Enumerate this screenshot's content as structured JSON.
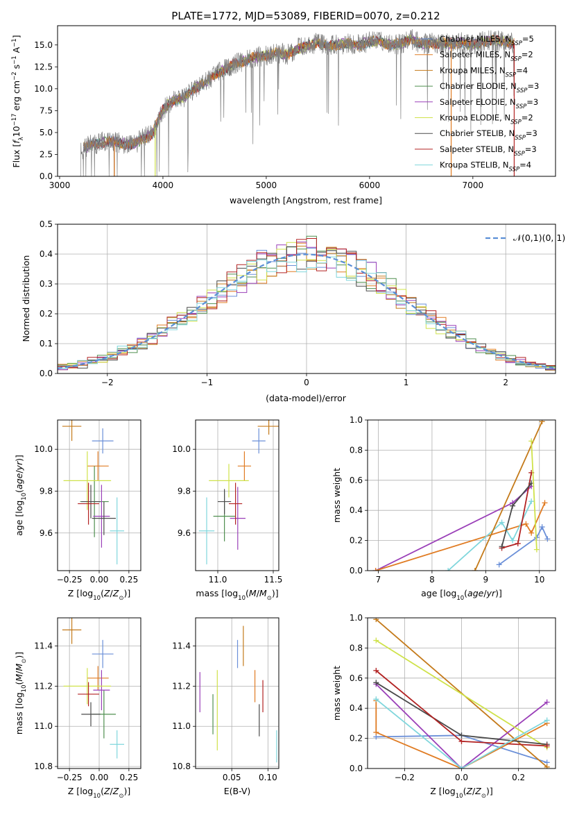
{
  "title": "PLATE=1772, MJD=53089, FIBERID=0070, z=0.212",
  "models": [
    {
      "name": "Chabrier MILES",
      "nssp": "5",
      "color": "#6a8fd8"
    },
    {
      "name": "Salpeter MILES",
      "nssp": "2",
      "color": "#e07b22"
    },
    {
      "name": "Kroupa MILES",
      "nssp": "4",
      "color": "#c47a1a"
    },
    {
      "name": "Chabrier ELODIE",
      "nssp": "3",
      "color": "#4f8f4f"
    },
    {
      "name": "Salpeter ELODIE",
      "nssp": "3",
      "color": "#9a3fb8"
    },
    {
      "name": "Kroupa ELODIE",
      "nssp": "2",
      "color": "#cfe24a"
    },
    {
      "name": "Chabrier STELIB",
      "nssp": "3",
      "color": "#4a4a4a"
    },
    {
      "name": "Salpeter STELIB",
      "nssp": "3",
      "color": "#b22222"
    },
    {
      "name": "Kroupa STELIB",
      "nssp": "4",
      "color": "#7fd6dc"
    }
  ],
  "chart_data": [
    {
      "id": "spectrum",
      "type": "line",
      "xlabel": "wavelength [Angstrom, rest frame]",
      "ylabel": "Flux [f_λ 10^-17 erg cm^-2 s^-1 A^-1]",
      "xlim": [
        2980,
        7800
      ],
      "ylim": [
        0,
        17.2
      ],
      "xticks": [
        3000,
        4000,
        5000,
        6000,
        7000
      ],
      "yticks": [
        "0.0",
        "2.5",
        "5.0",
        "7.5",
        "10.0",
        "12.5",
        "15.0"
      ],
      "data_series": {
        "name": "data",
        "color": "#808080",
        "x": [
          3200,
          3300,
          3400,
          3500,
          3600,
          3700,
          3800,
          3900,
          4000,
          4100,
          4200,
          4300,
          4400,
          4500,
          4600,
          4700,
          4800,
          4900,
          5000,
          5100,
          5200,
          5300,
          5400,
          5500,
          5600,
          5700,
          5800,
          5900,
          6000,
          6100,
          6200,
          6300,
          6400,
          6500,
          6600,
          6700,
          6800,
          6900,
          7000,
          7100,
          7200,
          7300,
          7400
        ],
        "y": [
          3.0,
          3.6,
          3.9,
          4.0,
          3.8,
          3.5,
          4.3,
          4.9,
          7.6,
          8.7,
          8.9,
          10.0,
          10.6,
          11.6,
          12.2,
          12.9,
          13.2,
          13.6,
          13.8,
          14.1,
          13.9,
          14.6,
          14.9,
          15.3,
          14.8,
          15.1,
          15.1,
          15.0,
          15.4,
          15.4,
          15.0,
          15.1,
          15.7,
          15.1,
          15.2,
          15.2,
          15.1,
          15.3,
          15.0,
          15.4,
          15.5,
          15.4,
          15.2
        ]
      },
      "legend_position": "upper right"
    },
    {
      "id": "residuals",
      "type": "histogram",
      "xlabel": "(data-model)/error",
      "ylabel": "Normed distribution",
      "xlim": [
        -2.5,
        2.5
      ],
      "ylim": [
        0,
        0.5
      ],
      "xticks": [
        -2,
        -1,
        0,
        1,
        2
      ],
      "yticks": [
        "0.0",
        "0.1",
        "0.2",
        "0.3",
        "0.4",
        "0.5"
      ],
      "reference_curve": {
        "name": "𝒩(0,1)",
        "color": "#5b8fd6",
        "style": "dashed"
      },
      "bin_width": 0.1
    },
    {
      "id": "age-vs-Z",
      "type": "errorbar",
      "xlabel": "Z [log10(Z/Z⊙)]",
      "ylabel": "age [log10(age/yr)]",
      "xlim": [
        -0.35,
        0.35
      ],
      "ylim": [
        9.42,
        10.14
      ],
      "xticks": [
        "−0.25",
        "0.00",
        "0.25"
      ],
      "yticks": [
        "9.6",
        "9.8",
        "10.0"
      ],
      "points": [
        {
          "model": 0,
          "x": 0.03,
          "y": 10.04,
          "xerr": 0.09,
          "yerr": 0.06
        },
        {
          "model": 1,
          "x": -0.01,
          "y": 9.92,
          "xerr": 0.09,
          "yerr": 0.07
        },
        {
          "model": 3,
          "x": -0.04,
          "y": 9.75,
          "xerr": 0.12,
          "yerr": 0.17
        },
        {
          "model": 4,
          "x": 0.02,
          "y": 9.68,
          "xerr": 0.07,
          "yerr": 0.15
        },
        {
          "model": 5,
          "x": -0.1,
          "y": 9.85,
          "xerr": 0.2,
          "yerr": 0.14
        },
        {
          "model": 6,
          "x": -0.07,
          "y": 9.75,
          "xerr": 0.08,
          "yerr": 0.08
        },
        {
          "model": 7,
          "x": -0.09,
          "y": 9.74,
          "xerr": 0.09,
          "yerr": 0.1
        },
        {
          "model": 8,
          "x": 0.15,
          "y": 9.61,
          "xerr": 0.06,
          "yerr": 0.16
        },
        {
          "model": 2,
          "x": -0.23,
          "y": 10.11,
          "xerr": 0.08,
          "yerr": 0.07
        },
        {
          "model": 6,
          "x": 0.04,
          "y": 9.67,
          "xerr": 0.1,
          "yerr": 0.08
        }
      ]
    },
    {
      "id": "age-vs-mass",
      "type": "errorbar",
      "xlabel": "mass [log10(M/M⊙)]",
      "ylabel": "",
      "xlim": [
        10.8,
        11.55
      ],
      "ylim": [
        9.42,
        10.14
      ],
      "xticks": [
        "11.0",
        "11.5"
      ],
      "yticks": [
        "9.6",
        "9.8",
        "10.0"
      ],
      "points": [
        {
          "model": 0,
          "x": 11.37,
          "y": 10.04,
          "xerr": 0.06,
          "yerr": 0.06
        },
        {
          "model": 1,
          "x": 11.24,
          "y": 9.92,
          "xerr": 0.06,
          "yerr": 0.07
        },
        {
          "model": 2,
          "x": 11.46,
          "y": 10.11,
          "xerr": 0.1,
          "yerr": 0.04
        },
        {
          "model": 3,
          "x": 11.06,
          "y": 9.68,
          "xerr": 0.1,
          "yerr": 0.12
        },
        {
          "model": 4,
          "x": 11.18,
          "y": 9.67,
          "xerr": 0.07,
          "yerr": 0.15
        },
        {
          "model": 5,
          "x": 11.1,
          "y": 9.85,
          "xerr": 0.18,
          "yerr": 0.08
        },
        {
          "model": 6,
          "x": 11.06,
          "y": 9.75,
          "xerr": 0.06,
          "yerr": 0.06
        },
        {
          "model": 7,
          "x": 11.16,
          "y": 9.74,
          "xerr": 0.06,
          "yerr": 0.1
        },
        {
          "model": 8,
          "x": 10.9,
          "y": 9.61,
          "xerr": 0.07,
          "yerr": 0.16
        }
      ]
    },
    {
      "id": "weight-vs-age",
      "type": "line",
      "xlabel": "age [log10(age/yr)]",
      "ylabel": "mass weight",
      "xlim": [
        6.8,
        10.3
      ],
      "ylim": [
        0,
        1
      ],
      "xticks": [
        "7",
        "8",
        "9",
        "10"
      ],
      "yticks": [
        "0.0",
        "0.2",
        "0.4",
        "0.6",
        "0.8",
        "1.0"
      ],
      "series": [
        {
          "model": 4,
          "x": [
            6.95,
            9.5,
            9.85
          ],
          "y": [
            0.0,
            0.45,
            0.56
          ]
        },
        {
          "model": 1,
          "x": [
            6.95,
            9.75,
            9.85,
            10.1
          ],
          "y": [
            0.0,
            0.31,
            0.25,
            0.45
          ]
        },
        {
          "model": 0,
          "x": [
            9.25,
            9.95,
            10.05,
            10.15
          ],
          "y": [
            0.04,
            0.22,
            0.29,
            0.21
          ]
        },
        {
          "model": 8,
          "x": [
            8.3,
            9.3,
            9.5,
            9.85
          ],
          "y": [
            0.0,
            0.32,
            0.2,
            0.46
          ]
        },
        {
          "model": 7,
          "x": [
            9.3,
            9.6,
            9.85
          ],
          "y": [
            0.15,
            0.18,
            0.65
          ]
        },
        {
          "model": 6,
          "x": [
            9.3,
            9.5,
            9.85
          ],
          "y": [
            0.16,
            0.43,
            0.58
          ]
        },
        {
          "model": 2,
          "x": [
            8.8,
            10.05
          ],
          "y": [
            0.0,
            0.99
          ]
        },
        {
          "model": 5,
          "x": [
            9.85,
            9.95
          ],
          "y": [
            0.86,
            0.14
          ]
        }
      ]
    },
    {
      "id": "mass-vs-Z",
      "type": "errorbar",
      "xlabel": "Z [log10(Z/Z⊙)]",
      "ylabel": "mass [log10(M/M⊙)]",
      "xlim": [
        -0.35,
        0.35
      ],
      "ylim": [
        10.79,
        11.54
      ],
      "xticks": [
        "−0.25",
        "0.00",
        "0.25"
      ],
      "yticks": [
        "10.8",
        "11.0",
        "11.2",
        "11.4"
      ],
      "points": [
        {
          "model": 0,
          "x": 0.03,
          "y": 11.36,
          "xerr": 0.09,
          "yerr": 0.07
        },
        {
          "model": 1,
          "x": -0.01,
          "y": 11.24,
          "xerr": 0.09,
          "yerr": 0.06
        },
        {
          "model": 2,
          "x": -0.23,
          "y": 11.48,
          "xerr": 0.08,
          "yerr": 0.07
        },
        {
          "model": 3,
          "x": 0.04,
          "y": 11.06,
          "xerr": 0.1,
          "yerr": 0.12
        },
        {
          "model": 4,
          "x": 0.02,
          "y": 11.18,
          "xerr": 0.07,
          "yerr": 0.1
        },
        {
          "model": 5,
          "x": -0.1,
          "y": 11.2,
          "xerr": 0.2,
          "yerr": 0.09
        },
        {
          "model": 6,
          "x": -0.07,
          "y": 11.06,
          "xerr": 0.08,
          "yerr": 0.06
        },
        {
          "model": 7,
          "x": -0.09,
          "y": 11.16,
          "xerr": 0.09,
          "yerr": 0.06
        },
        {
          "model": 8,
          "x": 0.15,
          "y": 10.91,
          "xerr": 0.06,
          "yerr": 0.07
        }
      ]
    },
    {
      "id": "mass-vs-EBV",
      "type": "errorbar",
      "xlabel": "E(B-V)",
      "ylabel": "",
      "xlim": [
        0.0,
        0.115
      ],
      "ylim": [
        10.79,
        11.54
      ],
      "xticks": [
        "0.05",
        "0.10"
      ],
      "yticks": [
        "10.8",
        "11.0",
        "11.2",
        "11.4"
      ],
      "points": [
        {
          "model": 0,
          "x": 0.058,
          "y": 11.36,
          "yerr": 0.07
        },
        {
          "model": 1,
          "x": 0.082,
          "y": 11.2,
          "yerr": 0.08
        },
        {
          "model": 2,
          "x": 0.066,
          "y": 11.4,
          "yerr": 0.1
        },
        {
          "model": 3,
          "x": 0.024,
          "y": 11.06,
          "yerr": 0.1
        },
        {
          "model": 4,
          "x": 0.006,
          "y": 11.17,
          "yerr": 0.1
        },
        {
          "model": 5,
          "x": 0.03,
          "y": 11.08,
          "yerr": 0.2
        },
        {
          "model": 6,
          "x": 0.088,
          "y": 11.03,
          "yerr": 0.08
        },
        {
          "model": 7,
          "x": 0.093,
          "y": 11.15,
          "yerr": 0.08
        },
        {
          "model": 8,
          "x": 0.112,
          "y": 10.9,
          "yerr": 0.08
        }
      ]
    },
    {
      "id": "weight-vs-Z",
      "type": "line",
      "xlabel": "Z [log10(Z/Z⊙)]",
      "ylabel": "mass weight",
      "xlim": [
        -0.33,
        0.33
      ],
      "ylim": [
        0,
        1
      ],
      "xticks": [
        "−0.2",
        "0.0",
        "0.2"
      ],
      "yticks": [
        "0.0",
        "0.2",
        "0.4",
        "0.6",
        "0.8",
        "1.0"
      ],
      "series": [
        {
          "model": 0,
          "x": [
            -0.3,
            0.0,
            0.3
          ],
          "y": [
            0.21,
            0.22,
            0.04
          ]
        },
        {
          "model": 1,
          "x": [
            -0.3,
            -0.3,
            0.0,
            0.3
          ],
          "y": [
            0.45,
            0.24,
            0.0,
            0.3
          ]
        },
        {
          "model": 2,
          "x": [
            -0.3,
            0.3
          ],
          "y": [
            0.99,
            0.01
          ]
        },
        {
          "model": 4,
          "x": [
            -0.3,
            0.0,
            0.3
          ],
          "y": [
            0.56,
            0.0,
            0.44
          ]
        },
        {
          "model": 5,
          "x": [
            -0.3,
            0.3
          ],
          "y": [
            0.85,
            0.14
          ]
        },
        {
          "model": 6,
          "x": [
            -0.3,
            0.0,
            0.3
          ],
          "y": [
            0.57,
            0.22,
            0.16
          ]
        },
        {
          "model": 7,
          "x": [
            -0.3,
            0.0,
            0.3
          ],
          "y": [
            0.65,
            0.18,
            0.15
          ]
        },
        {
          "model": 8,
          "x": [
            -0.3,
            0.0,
            0.3
          ],
          "y": [
            0.46,
            0.0,
            0.32
          ]
        }
      ]
    }
  ]
}
